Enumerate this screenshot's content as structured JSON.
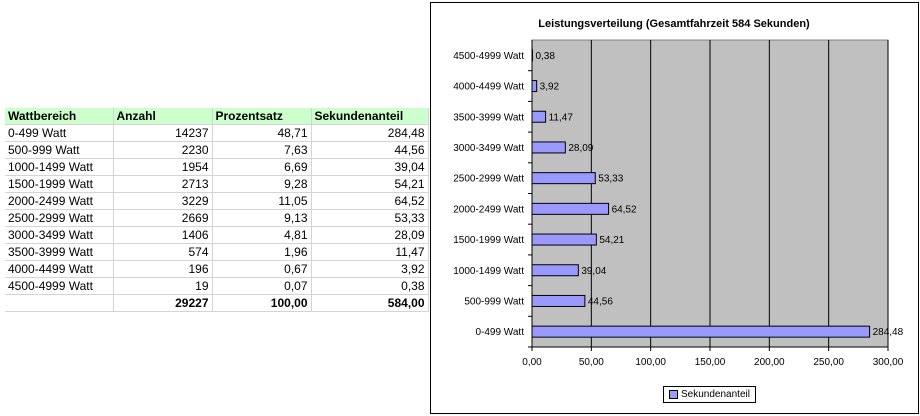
{
  "table": {
    "headers": [
      "Wattbereich",
      "Anzahl",
      "Prozentsatz",
      "Sekundenanteil"
    ],
    "rows": [
      [
        "0-499 Watt",
        "14237",
        "48,71",
        "284,48"
      ],
      [
        "500-999 Watt",
        "2230",
        "7,63",
        "44,56"
      ],
      [
        "1000-1499 Watt",
        "1954",
        "6,69",
        "39,04"
      ],
      [
        "1500-1999 Watt",
        "2713",
        "9,28",
        "54,21"
      ],
      [
        "2000-2499 Watt",
        "3229",
        "11,05",
        "64,52"
      ],
      [
        "2500-2999 Watt",
        "2669",
        "9,13",
        "53,33"
      ],
      [
        "3000-3499 Watt",
        "1406",
        "4,81",
        "28,09"
      ],
      [
        "3500-3999 Watt",
        "574",
        "1,96",
        "11,47"
      ],
      [
        "4000-4499 Watt",
        "196",
        "0,67",
        "3,92"
      ],
      [
        "4500-4999 Watt",
        "19",
        "0,07",
        "0,38"
      ]
    ],
    "total": [
      "",
      "29227",
      "100,00",
      "584,00"
    ]
  },
  "chart_data": {
    "type": "bar",
    "orientation": "horizontal",
    "title": "Leistungsverteilung (Gesamtfahrzeit 584 Sekunden)",
    "categories": [
      "0-499 Watt",
      "500-999 Watt",
      "1000-1499 Watt",
      "1500-1999 Watt",
      "2000-2499 Watt",
      "2500-2999 Watt",
      "3000-3499 Watt",
      "3500-3999 Watt",
      "4000-4499 Watt",
      "4500-4999 Watt"
    ],
    "series": [
      {
        "name": "Sekundenanteil",
        "values": [
          284.48,
          44.56,
          39.04,
          54.21,
          64.52,
          53.33,
          28.09,
          11.47,
          3.92,
          0.38
        ]
      }
    ],
    "data_labels": [
      "284,48",
      "44,56",
      "39,04",
      "54,21",
      "64,52",
      "53,33",
      "28,09",
      "11,47",
      "3,92",
      "0,38"
    ],
    "xlim": [
      0,
      300
    ],
    "xticks": [
      0,
      50,
      100,
      150,
      200,
      250,
      300
    ],
    "xtick_labels": [
      "0,00",
      "50,00",
      "100,00",
      "150,00",
      "200,00",
      "250,00",
      "300,00"
    ],
    "grid": "vertical major gridlines",
    "plot_background": "#c0c0c0",
    "bar_color": "#9999ff",
    "legend_position": "bottom"
  }
}
